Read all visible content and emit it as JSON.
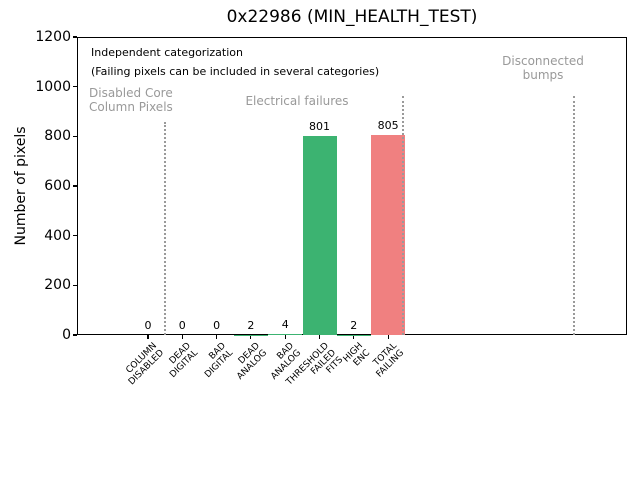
{
  "chart_data": {
    "type": "bar",
    "title": "0x22986 (MIN_HEALTH_TEST)",
    "ylabel": "Number of pixels",
    "xlabel": "",
    "ylim": [
      0,
      1200
    ],
    "yticks": [
      0,
      200,
      400,
      600,
      800,
      1000,
      1200
    ],
    "grid": false,
    "legend": null,
    "categories": [
      "COLUMN\nDISABLED",
      "DEAD\nDIGITAL",
      "BAD\nDIGITAL",
      "DEAD\nANALOG",
      "BAD\nANALOG",
      "THRESHOLD\nFAILED\nFITS",
      "HIGH\nENC",
      "TOTAL\nFAILING"
    ],
    "values": [
      0,
      0,
      0,
      2,
      4,
      801,
      2,
      805
    ],
    "bar_value_labels": [
      "0",
      "0",
      "0",
      "2",
      "4",
      "801",
      "2",
      "805"
    ],
    "bar_colors": [
      "#3cb371",
      "#3cb371",
      "#3cb371",
      "#3cb371",
      "#3cb371",
      "#3cb371",
      "#3cb371",
      "#f08080"
    ],
    "colors": {
      "green_bar": "#3cb371",
      "red_bar": "#f08080",
      "region_text_gray": "#999999",
      "separator_gray": "#9a9a9a",
      "text_black": "#000000"
    },
    "annotations": [
      {
        "name": "independent-categorization-note",
        "text": "Independent categorization",
        "color": "#000000",
        "x": 91,
        "y": 46,
        "align": "left",
        "size": 11
      },
      {
        "name": "failing-pixels-note",
        "text": "(Failing pixels can be included in several categories)",
        "color": "#000000",
        "x": 91,
        "y": 65,
        "align": "left",
        "size": 11
      },
      {
        "name": "region-label-disabled-core",
        "text": "Disabled Core\nColumn Pixels",
        "color": "#999999",
        "x": 89,
        "y": 86,
        "align": "left",
        "size": 12
      },
      {
        "name": "region-label-electrical-failures",
        "text": "Electrical failures",
        "color": "#999999",
        "x": 297,
        "y": 94,
        "align": "center",
        "size": 12
      },
      {
        "name": "region-label-disconnected-bumps",
        "text": "Disconnected\nbumps",
        "color": "#999999",
        "x": 543,
        "y": 54,
        "align": "center",
        "size": 12
      }
    ],
    "separators": [
      {
        "x": 165,
        "y_top": 122
      },
      {
        "x": 403,
        "y_top": 96
      },
      {
        "x": 574,
        "y_top": 96
      }
    ]
  }
}
